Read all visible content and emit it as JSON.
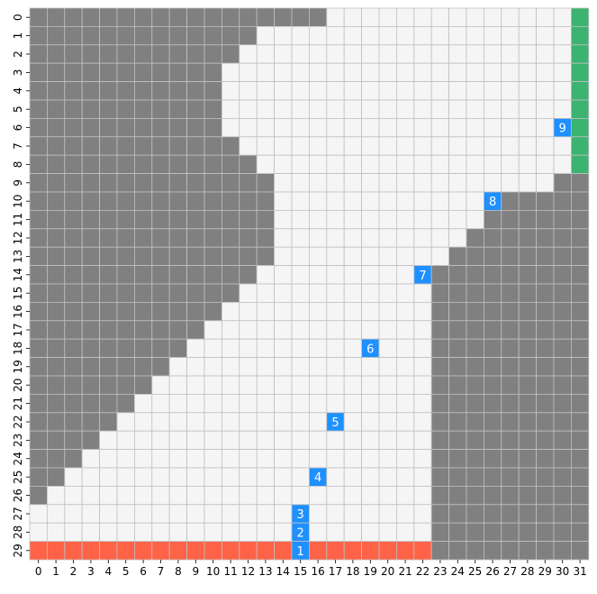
{
  "grid": {
    "cols": 32,
    "rows": 30,
    "x_tick_labels": [
      "0",
      "1",
      "2",
      "3",
      "4",
      "5",
      "6",
      "7",
      "8",
      "9",
      "10",
      "11",
      "12",
      "13",
      "14",
      "15",
      "16",
      "17",
      "18",
      "19",
      "20",
      "21",
      "22",
      "23",
      "24",
      "25",
      "26",
      "27",
      "28",
      "29",
      "30",
      "31"
    ],
    "y_tick_labels": [
      "0",
      "1",
      "2",
      "3",
      "4",
      "5",
      "6",
      "7",
      "8",
      "9",
      "10",
      "11",
      "12",
      "13",
      "14",
      "15",
      "16",
      "17",
      "18",
      "19",
      "20",
      "21",
      "22",
      "23",
      "24",
      "25",
      "26",
      "27",
      "28",
      "29"
    ],
    "row_walls": [
      [
        0,
        17
      ],
      [
        0,
        13
      ],
      [
        0,
        12
      ],
      [
        0,
        11
      ],
      [
        0,
        11
      ],
      [
        0,
        11
      ],
      [
        0,
        11
      ],
      [
        0,
        12
      ],
      [
        0,
        13
      ],
      [
        0,
        14
      ],
      [
        0,
        14
      ],
      [
        0,
        14
      ],
      [
        0,
        14
      ],
      [
        0,
        14
      ],
      [
        0,
        13
      ],
      [
        0,
        12
      ],
      [
        0,
        11
      ],
      [
        0,
        10
      ],
      [
        0,
        9
      ],
      [
        0,
        8
      ],
      [
        0,
        7
      ],
      [
        0,
        6
      ],
      [
        0,
        5
      ],
      [
        0,
        4
      ],
      [
        0,
        3
      ],
      [
        0,
        2
      ],
      [
        0,
        1
      ],
      [
        0,
        0
      ],
      [
        0,
        0
      ],
      [
        0,
        0
      ]
    ],
    "right_walls": [
      [
        9,
        30,
        31
      ],
      [
        10,
        27,
        31
      ],
      [
        11,
        26,
        31
      ],
      [
        12,
        25,
        31
      ],
      [
        13,
        24,
        31
      ],
      [
        14,
        23,
        31
      ],
      [
        15,
        23,
        31
      ],
      [
        16,
        23,
        31
      ],
      [
        17,
        23,
        31
      ],
      [
        18,
        23,
        31
      ],
      [
        19,
        23,
        31
      ],
      [
        20,
        23,
        31
      ],
      [
        21,
        23,
        31
      ],
      [
        22,
        23,
        31
      ],
      [
        23,
        23,
        31
      ],
      [
        24,
        23,
        31
      ],
      [
        25,
        23,
        31
      ],
      [
        26,
        23,
        31
      ],
      [
        27,
        23,
        31
      ],
      [
        28,
        23,
        31
      ],
      [
        29,
        23,
        31
      ]
    ],
    "goal_column": {
      "col": 31,
      "row_start": 0,
      "row_end": 8
    },
    "start_row": {
      "row": 29,
      "col_start": 0,
      "col_end": 22
    },
    "waypoints": [
      {
        "label": "1",
        "row": 29,
        "col": 15
      },
      {
        "label": "2",
        "row": 28,
        "col": 15
      },
      {
        "label": "3",
        "row": 27,
        "col": 15
      },
      {
        "label": "4",
        "row": 25,
        "col": 16
      },
      {
        "label": "5",
        "row": 22,
        "col": 17
      },
      {
        "label": "6",
        "row": 18,
        "col": 19
      },
      {
        "label": "7",
        "row": 14,
        "col": 22
      },
      {
        "label": "8",
        "row": 10,
        "col": 26
      },
      {
        "label": "9",
        "row": 6,
        "col": 30
      }
    ],
    "colors": {
      "wall": "#808080",
      "empty": "#f5f5f5",
      "goal": "#3cb371",
      "start": "#ff6347",
      "waypoint": "#1e90ff",
      "gridline": "#c0c0c0",
      "waypoint_text": "#ffffff",
      "tick_text": "#000000"
    }
  }
}
